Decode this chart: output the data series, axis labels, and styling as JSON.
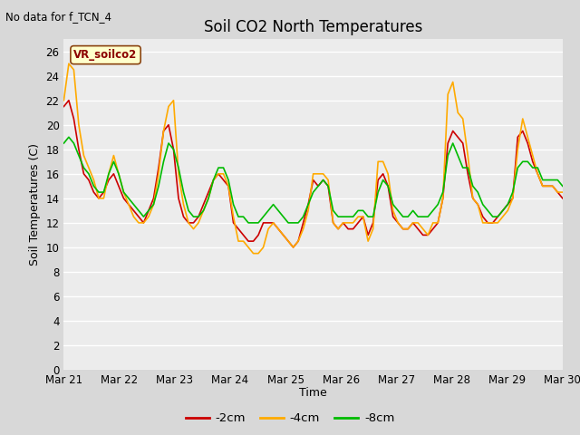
{
  "title": "Soil CO2 North Temperatures",
  "subtitle": "No data for f_TCN_4",
  "ylabel": "Soil Temperatures (C)",
  "xlabel": "Time",
  "legend_label": "VR_soilco2",
  "ylim": [
    0,
    27
  ],
  "yticks": [
    0,
    2,
    4,
    6,
    8,
    10,
    12,
    14,
    16,
    18,
    20,
    22,
    24,
    26
  ],
  "xtick_labels": [
    "Mar 21",
    "Mar 22",
    "Mar 23",
    "Mar 24",
    "Mar 25",
    "Mar 26",
    "Mar 27",
    "Mar 28",
    "Mar 29",
    "Mar 30"
  ],
  "line_colors": {
    "m2cm": "#cc0000",
    "m4cm": "#ffaa00",
    "m8cm": "#00bb00"
  },
  "legend_entries": [
    "-2cm",
    "-4cm",
    "-8cm"
  ],
  "fig_facecolor": "#d8d8d8",
  "ax_facecolor": "#ececec",
  "m2cm": [
    21.5,
    22.0,
    20.5,
    18.0,
    16.0,
    15.5,
    14.5,
    14.0,
    14.5,
    15.5,
    16.0,
    15.0,
    14.0,
    13.5,
    13.0,
    12.5,
    12.0,
    13.0,
    14.0,
    16.5,
    19.5,
    20.0,
    18.0,
    14.0,
    12.5,
    12.0,
    12.0,
    12.5,
    13.5,
    14.5,
    15.5,
    16.0,
    15.5,
    15.0,
    12.0,
    11.5,
    11.0,
    10.5,
    10.5,
    11.0,
    12.0,
    12.0,
    12.0,
    11.5,
    11.0,
    10.5,
    10.0,
    10.5,
    12.0,
    13.5,
    15.5,
    15.0,
    15.5,
    15.0,
    12.0,
    11.5,
    12.0,
    11.5,
    11.5,
    12.0,
    12.5,
    11.0,
    12.0,
    15.5,
    16.0,
    15.0,
    12.5,
    12.0,
    11.5,
    11.5,
    12.0,
    11.5,
    11.0,
    11.0,
    11.5,
    12.0,
    14.0,
    18.5,
    19.5,
    19.0,
    18.5,
    16.0,
    14.0,
    13.5,
    12.5,
    12.0,
    12.0,
    12.5,
    13.0,
    13.5,
    14.0,
    19.0,
    19.5,
    18.5,
    17.0,
    16.0,
    15.0,
    15.0,
    15.0,
    14.5,
    14.0
  ],
  "m4cm": [
    22.0,
    25.0,
    24.5,
    20.0,
    17.5,
    16.5,
    15.5,
    14.0,
    14.0,
    16.0,
    17.5,
    16.0,
    14.5,
    13.5,
    12.5,
    12.0,
    12.0,
    12.5,
    13.5,
    16.0,
    19.5,
    21.5,
    22.0,
    16.0,
    13.5,
    12.0,
    11.5,
    12.0,
    13.0,
    14.0,
    15.5,
    16.0,
    16.0,
    15.0,
    12.5,
    10.5,
    10.5,
    10.0,
    9.5,
    9.5,
    10.0,
    11.5,
    12.0,
    11.5,
    11.0,
    10.5,
    10.0,
    10.5,
    11.5,
    13.0,
    16.0,
    16.0,
    16.0,
    15.5,
    12.0,
    11.5,
    12.0,
    12.0,
    12.0,
    12.5,
    12.5,
    10.5,
    11.5,
    17.0,
    17.0,
    16.0,
    13.0,
    12.0,
    11.5,
    11.5,
    12.0,
    12.0,
    11.5,
    11.0,
    12.0,
    12.0,
    14.0,
    22.5,
    23.5,
    21.0,
    20.5,
    17.5,
    14.0,
    13.5,
    12.0,
    12.0,
    12.0,
    12.0,
    12.5,
    13.0,
    14.0,
    18.0,
    20.5,
    19.0,
    17.5,
    16.0,
    15.0,
    15.0,
    15.0,
    14.5,
    14.5
  ],
  "m8cm": [
    18.5,
    19.0,
    18.5,
    17.5,
    16.5,
    16.0,
    15.0,
    14.5,
    14.5,
    16.0,
    17.0,
    16.0,
    14.5,
    14.0,
    13.5,
    13.0,
    12.5,
    13.0,
    13.5,
    15.0,
    17.0,
    18.5,
    18.0,
    16.5,
    14.5,
    13.0,
    12.5,
    12.5,
    13.0,
    14.0,
    15.5,
    16.5,
    16.5,
    15.5,
    13.5,
    12.5,
    12.5,
    12.0,
    12.0,
    12.0,
    12.5,
    13.0,
    13.5,
    13.0,
    12.5,
    12.0,
    12.0,
    12.0,
    12.5,
    13.5,
    14.5,
    15.0,
    15.5,
    15.0,
    13.0,
    12.5,
    12.5,
    12.5,
    12.5,
    13.0,
    13.0,
    12.5,
    12.5,
    14.5,
    15.5,
    15.0,
    13.5,
    13.0,
    12.5,
    12.5,
    13.0,
    12.5,
    12.5,
    12.5,
    13.0,
    13.5,
    14.5,
    17.5,
    18.5,
    17.5,
    16.5,
    16.5,
    15.0,
    14.5,
    13.5,
    13.0,
    12.5,
    12.5,
    13.0,
    13.5,
    14.5,
    16.5,
    17.0,
    17.0,
    16.5,
    16.5,
    15.5,
    15.5,
    15.5,
    15.5,
    15.0
  ]
}
